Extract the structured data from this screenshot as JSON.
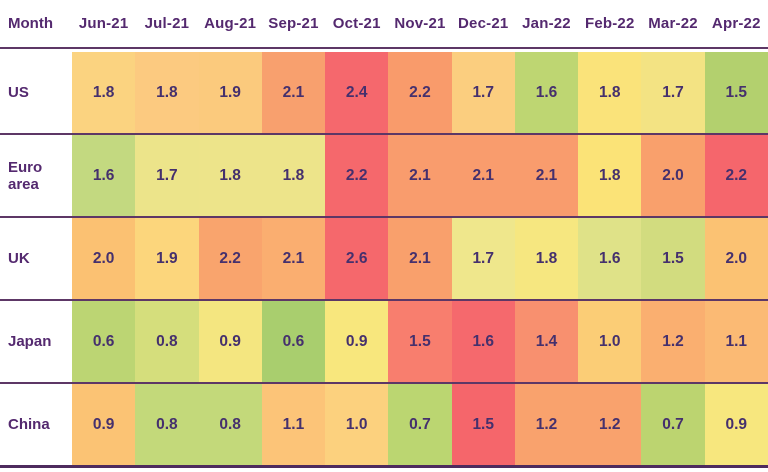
{
  "table": {
    "header": {
      "label": "Month",
      "months": [
        "Jun-21",
        "Jul-21",
        "Aug-21",
        "Sep-21",
        "Oct-21",
        "Nov-21",
        "Dec-21",
        "Jan-22",
        "Feb-22",
        "Mar-22",
        "Apr-22"
      ]
    },
    "rows": [
      {
        "label": "US",
        "values": [
          "1.8",
          "1.8",
          "1.9",
          "2.1",
          "2.4",
          "2.2",
          "1.7",
          "1.6",
          "1.8",
          "1.7",
          "1.5"
        ],
        "colors": [
          "#FBD380",
          "#FCCA80",
          "#FBCA7D",
          "#F8A06E",
          "#F5686D",
          "#F99B6B",
          "#FBCE7F",
          "#BED672",
          "#FAE37A",
          "#F3E383",
          "#B3D06E"
        ]
      },
      {
        "label": "Euro area",
        "values": [
          "1.6",
          "1.7",
          "1.8",
          "1.8",
          "2.2",
          "2.1",
          "2.1",
          "2.1",
          "1.8",
          "2.0",
          "2.2"
        ],
        "colors": [
          "#C3D980",
          "#ECE48A",
          "#EDE48A",
          "#EDE48A",
          "#F5686C",
          "#F99C6D",
          "#F99C6D",
          "#F99C6D",
          "#FBE377",
          "#F9A06C",
          "#F5666C"
        ]
      },
      {
        "label": "UK",
        "values": [
          "2.0",
          "1.9",
          "2.2",
          "2.1",
          "2.6",
          "2.1",
          "1.7",
          "1.8",
          "1.6",
          "1.5",
          "2.0"
        ],
        "colors": [
          "#FBC172",
          "#FCD67C",
          "#F9A46D",
          "#FAAE70",
          "#F5686C",
          "#F9A06C",
          "#EFE78C",
          "#F6E780",
          "#DFE288",
          "#D2DC7F",
          "#FBC273"
        ]
      },
      {
        "label": "Japan",
        "values": [
          "0.6",
          "0.8",
          "0.9",
          "0.6",
          "0.9",
          "1.5",
          "1.6",
          "1.4",
          "1.0",
          "1.2",
          "1.1"
        ],
        "colors": [
          "#BCD573",
          "#D5DE7C",
          "#F4E680",
          "#A9CE6E",
          "#F8E77D",
          "#F87E6E",
          "#F5696D",
          "#F8906F",
          "#FBCD76",
          "#FAAF70",
          "#FBBA74"
        ]
      },
      {
        "label": "China",
        "values": [
          "0.9",
          "0.8",
          "0.8",
          "1.1",
          "1.0",
          "0.7",
          "1.5",
          "1.2",
          "1.2",
          "0.7",
          "0.9"
        ],
        "colors": [
          "#FBC374",
          "#C3D97A",
          "#C3D97A",
          "#FCC478",
          "#FCD17E",
          "#BBD671",
          "#F5666B",
          "#F9A26D",
          "#F9A26D",
          "#BCD470",
          "#F7E77E"
        ]
      }
    ],
    "style": {
      "header_text_color": "#54296F",
      "value_text_color": "#45306D",
      "separator_color": "#5D3766",
      "bottom_border_color": "#4E2B5E",
      "background": "#FFFFFF"
    }
  },
  "chart_data": {
    "type": "heatmap",
    "title": "",
    "x_labels": [
      "Jun-21",
      "Jul-21",
      "Aug-21",
      "Sep-21",
      "Oct-21",
      "Nov-21",
      "Dec-21",
      "Jan-22",
      "Feb-22",
      "Mar-22",
      "Apr-22"
    ],
    "y_labels": [
      "US",
      "Euro area",
      "UK",
      "Japan",
      "China"
    ],
    "corner_label": "Month",
    "values": [
      [
        1.8,
        1.8,
        1.9,
        2.1,
        2.4,
        2.2,
        1.7,
        1.6,
        1.8,
        1.7,
        1.5
      ],
      [
        1.6,
        1.7,
        1.8,
        1.8,
        2.2,
        2.1,
        2.1,
        2.1,
        1.8,
        2.0,
        2.2
      ],
      [
        2.0,
        1.9,
        2.2,
        2.1,
        2.6,
        2.1,
        1.7,
        1.8,
        1.6,
        1.5,
        2.0
      ],
      [
        0.6,
        0.8,
        0.9,
        0.6,
        0.9,
        1.5,
        1.6,
        1.4,
        1.0,
        1.2,
        1.1
      ],
      [
        0.9,
        0.8,
        0.8,
        1.1,
        1.0,
        0.7,
        1.5,
        1.2,
        1.2,
        0.7,
        0.9
      ]
    ],
    "colormap": "green-yellow-orange-red (low to high), normalized per row",
    "colormap_anchors": [
      "#A9CE6E",
      "#F4E680",
      "#F9A06C",
      "#F5686C"
    ],
    "legend": "none",
    "grid": "off"
  }
}
